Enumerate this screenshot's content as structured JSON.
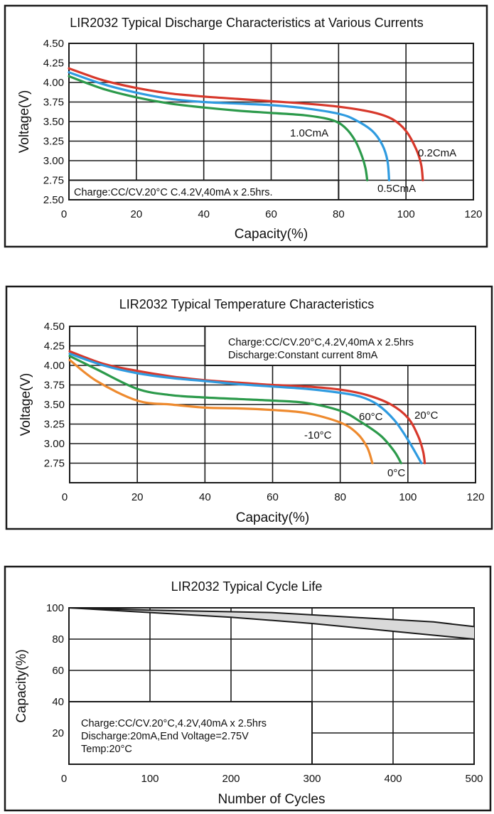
{
  "chart_data": [
    {
      "type": "line",
      "title": "LIR2032 Typical Discharge Characteristics at Various Currents",
      "xlabel": "Capacity(%)",
      "ylabel": "Voltage(V)",
      "xlim": [
        0,
        120
      ],
      "ylim": [
        2.5,
        4.5
      ],
      "xticks": [
        "0",
        "20",
        "40",
        "60",
        "80",
        "100",
        "120"
      ],
      "yticks": [
        "2.50",
        "2.75",
        "3.00",
        "3.25",
        "3.50",
        "3.75",
        "4.00",
        "4.25",
        "4.50"
      ],
      "grid": true,
      "annotation": [
        "Charge:CC/CV.20°C C.4.2V,40mA x 2.5hrs."
      ],
      "series": [
        {
          "name": "0.2CmA",
          "color": "#d7382b",
          "x": [
            0,
            10,
            20,
            30,
            40,
            50,
            60,
            70,
            80,
            90,
            96,
            100,
            103,
            104.5,
            105
          ],
          "y": [
            4.18,
            4.03,
            3.93,
            3.86,
            3.82,
            3.79,
            3.76,
            3.73,
            3.69,
            3.62,
            3.53,
            3.38,
            3.15,
            2.95,
            2.75
          ]
        },
        {
          "name": "0.5CmA",
          "color": "#2f9be0",
          "x": [
            0,
            10,
            20,
            30,
            40,
            50,
            60,
            70,
            80,
            85,
            90,
            93,
            94.5,
            95
          ],
          "y": [
            4.13,
            3.98,
            3.87,
            3.79,
            3.75,
            3.73,
            3.71,
            3.67,
            3.6,
            3.52,
            3.38,
            3.2,
            3.0,
            2.75
          ]
        },
        {
          "name": "1.0CmA",
          "color": "#2c9a4b",
          "x": [
            0,
            10,
            20,
            30,
            40,
            50,
            60,
            70,
            78,
            82,
            85,
            87,
            88,
            88.5
          ],
          "y": [
            4.08,
            3.92,
            3.81,
            3.73,
            3.68,
            3.64,
            3.61,
            3.58,
            3.52,
            3.42,
            3.25,
            3.05,
            2.9,
            2.75
          ]
        }
      ]
    },
    {
      "type": "line",
      "title": "LIR2032 Typical Temperature Characteristics",
      "xlabel": "Capacity(%)",
      "ylabel": "Voltage(V)",
      "xlim": [
        0,
        120
      ],
      "ylim": [
        2.5,
        4.5
      ],
      "xticks": [
        "0",
        "20",
        "40",
        "60",
        "80",
        "100",
        "120"
      ],
      "yticks": [
        "2.75",
        "3.00",
        "3.25",
        "3.50",
        "3.75",
        "4.00",
        "4.25",
        "4.50"
      ],
      "grid": true,
      "annotation": [
        "Charge:CC/CV.20°C,4.2V,40mA x 2.5hrs",
        "Discharge:Constant current 8mA"
      ],
      "series": [
        {
          "name": "20°C",
          "color": "#d7382b",
          "x": [
            0,
            10,
            20,
            30,
            40,
            50,
            60,
            70,
            80,
            88,
            95,
            100,
            103,
            104.5,
            105
          ],
          "y": [
            4.18,
            4.02,
            3.93,
            3.86,
            3.81,
            3.78,
            3.75,
            3.73,
            3.69,
            3.62,
            3.5,
            3.33,
            3.1,
            2.9,
            2.75
          ]
        },
        {
          "name": "60°C",
          "color": "#2f9be0",
          "x": [
            0,
            10,
            20,
            30,
            40,
            50,
            60,
            70,
            80,
            86,
            91,
            96,
            100,
            104
          ],
          "y": [
            4.15,
            4.0,
            3.9,
            3.84,
            3.8,
            3.76,
            3.73,
            3.7,
            3.65,
            3.6,
            3.5,
            3.3,
            3.05,
            2.75
          ]
        },
        {
          "name": "0°C",
          "color": "#2c9a4b",
          "x": [
            0,
            8,
            20,
            30,
            40,
            50,
            60,
            70,
            80,
            86,
            92,
            96,
            98
          ],
          "y": [
            4.12,
            3.95,
            3.7,
            3.62,
            3.59,
            3.57,
            3.55,
            3.52,
            3.42,
            3.28,
            3.1,
            2.9,
            2.75
          ]
        },
        {
          "name": "-10°C",
          "color": "#ee8a2e",
          "x": [
            0,
            8,
            20,
            30,
            40,
            50,
            60,
            70,
            80,
            85,
            88,
            89.5
          ],
          "y": [
            4.07,
            3.8,
            3.55,
            3.5,
            3.46,
            3.45,
            3.43,
            3.39,
            3.27,
            3.13,
            2.95,
            2.75
          ]
        }
      ]
    },
    {
      "type": "area",
      "title": "LIR2032 Typical Cycle Life",
      "xlabel": "Number of Cycles",
      "ylabel": "Capacity(%)",
      "xlim": [
        0,
        500
      ],
      "ylim": [
        0,
        100
      ],
      "xticks": [
        "0",
        "100",
        "200",
        "300",
        "400",
        "500"
      ],
      "yticks": [
        "20",
        "40",
        "60",
        "80",
        "100"
      ],
      "grid": true,
      "fill_color": "#d9d9d9",
      "annotation": [
        "Charge:CC/CV.20°C,4.2V,40mA x 2.5hrs",
        "Discharge:20mA,End Voltage=2.75V",
        "Temp:20°C"
      ],
      "series": [
        {
          "name": "upper",
          "x": [
            0,
            100,
            200,
            250,
            300,
            400,
            450,
            500
          ],
          "y": [
            100,
            98.5,
            97.5,
            97,
            95.5,
            92.5,
            91,
            88
          ]
        },
        {
          "name": "lower",
          "x": [
            0,
            100,
            200,
            300,
            400,
            500
          ],
          "y": [
            100,
            97,
            94,
            90,
            85,
            80
          ]
        }
      ]
    }
  ]
}
